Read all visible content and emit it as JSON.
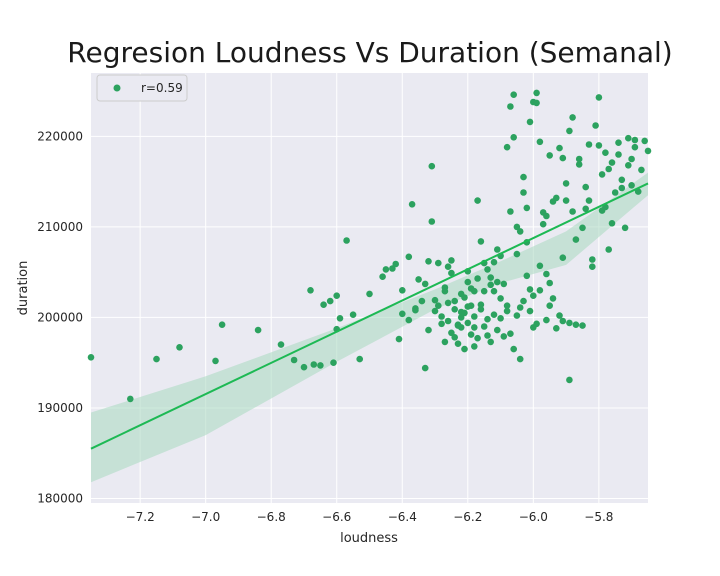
{
  "chart_data": {
    "type": "scatter",
    "title": "Regresion Loudness Vs Duration (Semanal)",
    "xlabel": "loudness",
    "ylabel": "duration",
    "xlim": [
      -7.35,
      -5.65
    ],
    "ylim": [
      179500,
      227000
    ],
    "xticks": [
      -7.2,
      -7.0,
      -6.8,
      -6.6,
      -6.4,
      -6.2,
      -6.0,
      -5.8
    ],
    "yticks": [
      180000,
      190000,
      200000,
      210000,
      220000
    ],
    "xtick_labels": [
      "−7.2",
      "−7.0",
      "−6.8",
      "−6.6",
      "−6.4",
      "−6.2",
      "−6.0",
      "−5.8"
    ],
    "ytick_labels": [
      "180000",
      "190000",
      "200000",
      "210000",
      "220000"
    ],
    "grid": true,
    "legend": {
      "placement": "top-left",
      "entries": [
        "r=0.59"
      ]
    },
    "colors": {
      "points": "#2ca25f",
      "line": "#1db954",
      "band": "#a8d8c0",
      "background": "#eaeaf2"
    },
    "regression": {
      "x": [
        -7.35,
        -5.65
      ],
      "y": [
        185500,
        214800
      ]
    },
    "confidence_band": {
      "x": [
        -7.35,
        -7.0,
        -6.6,
        -6.3,
        -6.1,
        -5.9,
        -5.65
      ],
      "upper": [
        189500,
        193500,
        198800,
        203100,
        206200,
        209500,
        216000
      ],
      "lower": [
        181800,
        187000,
        195100,
        200900,
        203800,
        205800,
        213500
      ]
    },
    "series": [
      {
        "points": [
          [
            -7.35,
            195600
          ],
          [
            -7.23,
            191000
          ],
          [
            -7.15,
            195400
          ],
          [
            -7.08,
            196700
          ],
          [
            -6.97,
            195200
          ],
          [
            -6.95,
            199200
          ],
          [
            -6.84,
            198600
          ],
          [
            -6.77,
            197000
          ],
          [
            -6.73,
            195300
          ],
          [
            -6.7,
            194500
          ],
          [
            -6.68,
            203000
          ],
          [
            -6.67,
            194800
          ],
          [
            -6.65,
            194700
          ],
          [
            -6.64,
            201400
          ],
          [
            -6.62,
            201800
          ],
          [
            -6.61,
            195000
          ],
          [
            -6.6,
            202400
          ],
          [
            -6.6,
            198700
          ],
          [
            -6.59,
            199900
          ],
          [
            -6.57,
            208500
          ],
          [
            -6.55,
            200300
          ],
          [
            -6.53,
            195400
          ],
          [
            -6.5,
            202600
          ],
          [
            -6.46,
            204500
          ],
          [
            -6.45,
            205300
          ],
          [
            -6.43,
            205400
          ],
          [
            -6.42,
            205900
          ],
          [
            -6.41,
            197600
          ],
          [
            -6.4,
            203000
          ],
          [
            -6.38,
            206700
          ],
          [
            -6.37,
            212500
          ],
          [
            -6.36,
            201000
          ],
          [
            -6.35,
            204200
          ],
          [
            -6.34,
            201800
          ],
          [
            -6.33,
            203700
          ],
          [
            -6.32,
            206200
          ],
          [
            -6.31,
            216700
          ],
          [
            -6.31,
            210600
          ],
          [
            -6.3,
            201900
          ],
          [
            -6.29,
            206000
          ],
          [
            -6.28,
            200100
          ],
          [
            -6.27,
            197300
          ],
          [
            -6.26,
            205600
          ],
          [
            -6.25,
            206300
          ],
          [
            -6.24,
            200900
          ],
          [
            -6.23,
            199100
          ],
          [
            -6.22,
            202600
          ],
          [
            -6.21,
            200500
          ],
          [
            -6.2,
            203900
          ],
          [
            -6.19,
            201300
          ],
          [
            -6.18,
            200100
          ],
          [
            -6.17,
            212900
          ],
          [
            -6.16,
            208400
          ],
          [
            -6.15,
            206000
          ],
          [
            -6.14,
            199800
          ],
          [
            -6.13,
            204400
          ],
          [
            -6.12,
            202900
          ],
          [
            -6.11,
            207500
          ],
          [
            -6.1,
            206800
          ],
          [
            -6.09,
            203700
          ],
          [
            -6.08,
            200700
          ],
          [
            -6.07,
            211700
          ],
          [
            -6.06,
            219900
          ],
          [
            -6.05,
            207000
          ],
          [
            -6.04,
            201100
          ],
          [
            -6.03,
            215500
          ],
          [
            -6.02,
            208300
          ],
          [
            -6.01,
            203100
          ],
          [
            -6.0,
            198900
          ],
          [
            -5.99,
            224800
          ],
          [
            -5.98,
            219400
          ],
          [
            -5.97,
            210300
          ],
          [
            -5.96,
            204800
          ],
          [
            -5.95,
            217900
          ],
          [
            -5.94,
            202100
          ],
          [
            -5.93,
            213200
          ],
          [
            -5.92,
            200200
          ],
          [
            -5.91,
            206600
          ],
          [
            -5.9,
            214800
          ],
          [
            -5.89,
            193100
          ],
          [
            -5.88,
            211700
          ],
          [
            -5.87,
            208600
          ],
          [
            -5.86,
            216900
          ],
          [
            -5.85,
            199100
          ],
          [
            -5.84,
            212000
          ],
          [
            -5.83,
            219100
          ],
          [
            -5.82,
            206400
          ],
          [
            -5.81,
            221200
          ],
          [
            -5.8,
            224300
          ],
          [
            -5.79,
            215800
          ],
          [
            -5.78,
            218200
          ],
          [
            -5.77,
            207500
          ],
          [
            -5.76,
            217100
          ],
          [
            -5.75,
            213800
          ],
          [
            -5.74,
            219300
          ],
          [
            -5.73,
            215200
          ],
          [
            -5.72,
            209900
          ],
          [
            -5.71,
            219800
          ],
          [
            -5.7,
            214600
          ],
          [
            -5.69,
            218800
          ],
          [
            -5.68,
            213900
          ],
          [
            -5.67,
            216300
          ],
          [
            -5.66,
            219500
          ],
          [
            -5.65,
            218400
          ],
          [
            -6.26,
            199600
          ],
          [
            -6.25,
            198300
          ],
          [
            -6.24,
            197800
          ],
          [
            -6.23,
            197100
          ],
          [
            -6.22,
            198900
          ],
          [
            -6.21,
            196500
          ],
          [
            -6.2,
            199400
          ],
          [
            -6.19,
            198100
          ],
          [
            -6.18,
            196800
          ],
          [
            -6.17,
            197700
          ],
          [
            -6.16,
            200900
          ],
          [
            -6.15,
            199000
          ],
          [
            -6.14,
            198000
          ],
          [
            -6.13,
            197300
          ],
          [
            -6.12,
            200300
          ],
          [
            -6.11,
            198600
          ],
          [
            -6.1,
            199900
          ],
          [
            -6.09,
            197900
          ],
          [
            -6.08,
            201300
          ],
          [
            -6.07,
            198200
          ],
          [
            -6.06,
            196500
          ],
          [
            -6.05,
            200200
          ],
          [
            -6.04,
            195400
          ],
          [
            -6.03,
            201800
          ],
          [
            -6.02,
            204600
          ],
          [
            -6.01,
            200700
          ],
          [
            -6.0,
            202400
          ],
          [
            -5.99,
            199300
          ],
          [
            -5.98,
            203000
          ],
          [
            -5.96,
            199700
          ],
          [
            -5.95,
            201300
          ],
          [
            -5.93,
            198800
          ],
          [
            -5.91,
            199600
          ],
          [
            -5.89,
            199400
          ],
          [
            -5.87,
            199200
          ],
          [
            -6.3,
            200700
          ],
          [
            -6.28,
            199300
          ],
          [
            -6.27,
            203300
          ],
          [
            -6.26,
            201600
          ],
          [
            -6.25,
            204900
          ],
          [
            -6.24,
            201800
          ],
          [
            -6.23,
            199200
          ],
          [
            -6.22,
            200600
          ],
          [
            -6.21,
            202200
          ],
          [
            -6.2,
            205100
          ],
          [
            -6.19,
            203200
          ],
          [
            -6.18,
            202900
          ],
          [
            -6.17,
            204300
          ],
          [
            -6.16,
            201400
          ],
          [
            -6.15,
            202900
          ],
          [
            -6.14,
            205300
          ],
          [
            -6.13,
            203600
          ],
          [
            -6.12,
            206100
          ],
          [
            -6.11,
            203900
          ],
          [
            -6.1,
            202100
          ],
          [
            -6.08,
            218800
          ],
          [
            -6.07,
            223300
          ],
          [
            -6.06,
            224600
          ],
          [
            -6.05,
            210000
          ],
          [
            -6.04,
            209500
          ],
          [
            -6.03,
            213800
          ],
          [
            -6.02,
            212100
          ],
          [
            -6.01,
            221600
          ],
          [
            -6.0,
            223800
          ],
          [
            -5.99,
            223700
          ],
          [
            -5.98,
            205700
          ],
          [
            -5.97,
            211600
          ],
          [
            -5.96,
            211200
          ],
          [
            -5.95,
            203800
          ],
          [
            -5.94,
            212800
          ],
          [
            -5.92,
            218700
          ],
          [
            -5.91,
            217600
          ],
          [
            -5.9,
            212900
          ],
          [
            -5.89,
            220600
          ],
          [
            -5.88,
            222100
          ],
          [
            -5.86,
            217500
          ],
          [
            -5.85,
            209900
          ],
          [
            -5.84,
            214400
          ],
          [
            -5.83,
            212900
          ],
          [
            -5.82,
            205600
          ],
          [
            -5.8,
            219000
          ],
          [
            -5.79,
            211800
          ],
          [
            -5.78,
            212200
          ],
          [
            -5.77,
            216400
          ],
          [
            -5.76,
            210400
          ],
          [
            -5.74,
            218000
          ],
          [
            -5.73,
            214300
          ],
          [
            -5.71,
            216800
          ],
          [
            -5.7,
            217500
          ],
          [
            -5.69,
            219600
          ],
          [
            -6.4,
            200400
          ],
          [
            -6.38,
            199700
          ],
          [
            -6.36,
            200800
          ],
          [
            -6.33,
            194400
          ],
          [
            -6.32,
            198600
          ],
          [
            -6.29,
            201300
          ],
          [
            -6.27,
            202900
          ],
          [
            -6.22,
            200000
          ],
          [
            -6.2,
            201200
          ],
          [
            -6.18,
            198900
          ]
        ]
      }
    ]
  }
}
